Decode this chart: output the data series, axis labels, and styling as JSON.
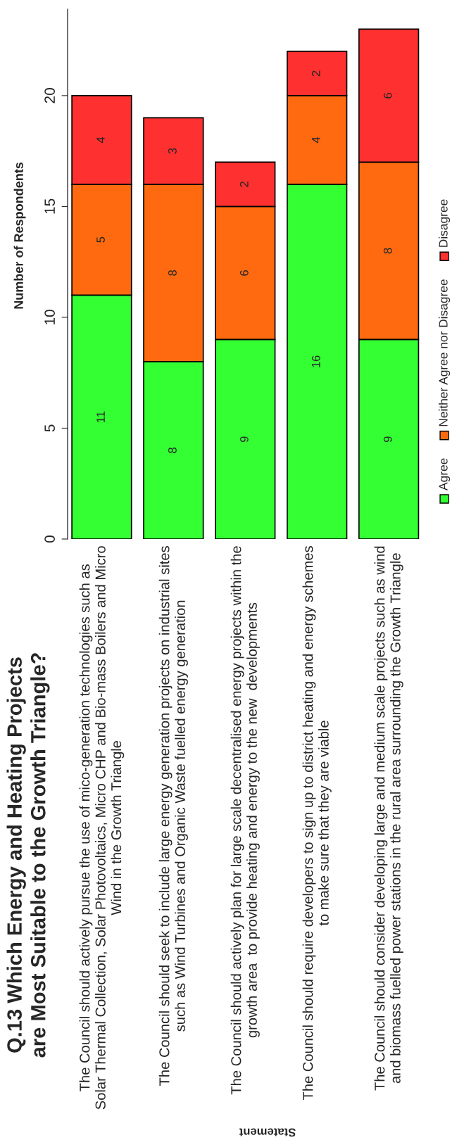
{
  "chart_data": {
    "type": "bar",
    "stacked": true,
    "title": "Q.13 Which Energy and Heating Projects\nare Most Suitable to the Growth Triangle?",
    "xlabel": "Statement",
    "ylabel": "Number of Respondents",
    "categories": [
      "The Council should actively pursue the use of mico-generation technologies such as\nSolar Thermal Collection, Solar Photovoltaics, Micro CHP and Bio-mass Boilers and Micro\nWind in the Growth Triangle",
      "The Council should seek to include large energy generation projects on industrial sites\nsuch as Wind Turbines and Organic Waste fuelled energy generation",
      "The Council should actively plan for large scale decentralised energy projects within the\ngrowth area  to provide heating and energy to the new  developments",
      "The Council should require developers to sign up to district heating and energy schemes\nto make sure that they are viable",
      "The Council should consider developing large and medium scale projects such as wind\nand biomass fuelled power stations in the rural area surrounding the Growth Triangle"
    ],
    "series": [
      {
        "name": "Agree",
        "color": "#33ff33",
        "values": [
          11,
          8,
          9,
          16,
          9
        ]
      },
      {
        "name": "Neither Agree nor Disagree",
        "color": "#ff6a10",
        "values": [
          5,
          8,
          6,
          4,
          8
        ]
      },
      {
        "name": "Disagree",
        "color": "#ff3030",
        "values": [
          4,
          3,
          2,
          2,
          6
        ]
      }
    ],
    "ylim": [
      0,
      23.9
    ],
    "yticks": [
      0,
      5,
      10,
      15,
      20
    ],
    "data_labels": true,
    "grid": false,
    "legend": "right"
  }
}
